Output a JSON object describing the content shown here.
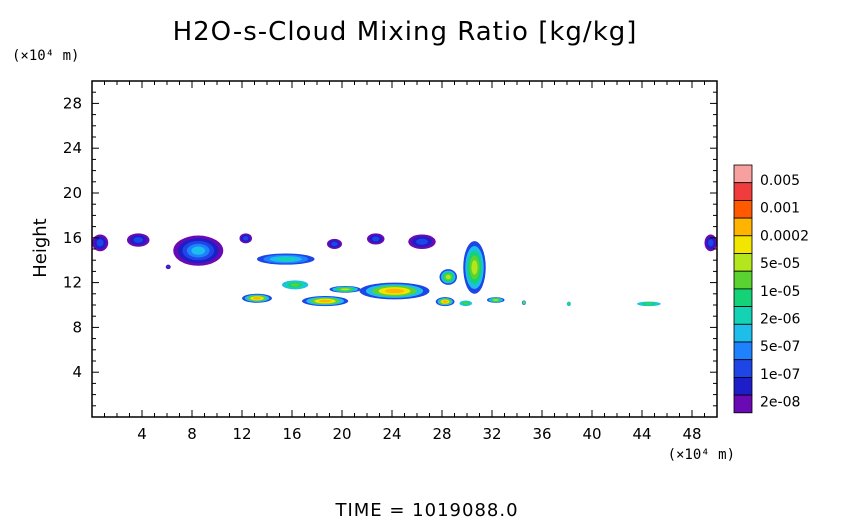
{
  "chart_data": {
    "type": "heatmap",
    "title": "H2O-s-Cloud Mixing Ratio [kg/kg]",
    "ylabel": "Height",
    "y_unit": "(×10⁴ m)",
    "x_unit": "(×10⁴ m)",
    "xlim": [
      0,
      50
    ],
    "ylim": [
      0,
      30
    ],
    "x_ticks": [
      4,
      8,
      12,
      16,
      20,
      24,
      28,
      32,
      36,
      40,
      44,
      48
    ],
    "y_ticks": [
      4,
      8,
      12,
      16,
      20,
      24,
      28
    ],
    "footer": "TIME = 1019088.0",
    "colorbar": {
      "labels": [
        "0.005",
        "0.001",
        "0.0002",
        "5e-05",
        "1e-05",
        "2e-06",
        "5e-07",
        "1e-07",
        "2e-08"
      ],
      "colors": [
        "#f7a0a0",
        "#f03c3c",
        "#ff5a00",
        "#ffb400",
        "#f2e600",
        "#b4e61e",
        "#5ad232",
        "#14d278",
        "#14d2b4",
        "#1ebeeb",
        "#1e82ff",
        "#1e46e6",
        "#1e1ec8",
        "#6a0ab4"
      ]
    },
    "cloud_regions": [
      {
        "x": [
          0.0,
          1.3
        ],
        "y": [
          14.8,
          16.3
        ],
        "level": "2e-08 to 1e-07"
      },
      {
        "x": [
          2.8,
          4.6
        ],
        "y": [
          15.2,
          16.4
        ],
        "level": "2e-08 to 1e-07"
      },
      {
        "x": [
          6.5,
          10.5
        ],
        "y": [
          13.5,
          16.2
        ],
        "level": "2e-08 to 5e-07"
      },
      {
        "x": [
          11.8,
          12.8
        ],
        "y": [
          15.5,
          16.4
        ],
        "level": "2e-08 to 1e-07"
      },
      {
        "x": [
          13.2,
          17.8
        ],
        "y": [
          13.6,
          14.6
        ],
        "level": "5e-07 to 2e-06"
      },
      {
        "x": [
          18.8,
          20.0
        ],
        "y": [
          15.0,
          15.9
        ],
        "level": "1e-07"
      },
      {
        "x": [
          22.0,
          23.4
        ],
        "y": [
          15.4,
          16.4
        ],
        "level": "2e-08"
      },
      {
        "x": [
          25.3,
          27.5
        ],
        "y": [
          15.0,
          16.3
        ],
        "level": "2e-08 to 1e-07"
      },
      {
        "x": [
          29.7,
          31.5
        ],
        "y": [
          11.0,
          15.7
        ],
        "level": "5e-07 to 5e-05"
      },
      {
        "x": [
          12.0,
          14.4
        ],
        "y": [
          10.2,
          11.0
        ],
        "level": "2e-06 to 0.0002"
      },
      {
        "x": [
          15.2,
          17.3
        ],
        "y": [
          11.4,
          12.2
        ],
        "level": "2e-06 to 1e-05"
      },
      {
        "x": [
          16.8,
          20.5
        ],
        "y": [
          9.9,
          10.8
        ],
        "level": "1e-05 to 0.0002"
      },
      {
        "x": [
          19.0,
          21.5
        ],
        "y": [
          11.1,
          11.7
        ],
        "level": "5e-05"
      },
      {
        "x": [
          21.4,
          27.0
        ],
        "y": [
          10.5,
          12.0
        ],
        "level": "1e-05 to 0.0002"
      },
      {
        "x": [
          27.8,
          29.2
        ],
        "y": [
          11.8,
          13.2
        ],
        "level": "5e-05"
      },
      {
        "x": [
          27.5,
          29.0
        ],
        "y": [
          9.9,
          10.7
        ],
        "level": "1e-05 to 0.0002"
      },
      {
        "x": [
          29.4,
          30.4
        ],
        "y": [
          9.9,
          10.4
        ],
        "level": "1e-05"
      },
      {
        "x": [
          31.6,
          33.0
        ],
        "y": [
          10.2,
          10.7
        ],
        "level": "5e-05"
      },
      {
        "x": [
          34.4,
          34.7
        ],
        "y": [
          10.0,
          10.4
        ],
        "level": "5e-05"
      },
      {
        "x": [
          38.0,
          38.3
        ],
        "y": [
          9.9,
          10.3
        ],
        "level": "1e-05"
      },
      {
        "x": [
          43.6,
          45.5
        ],
        "y": [
          9.9,
          10.3
        ],
        "level": "1e-05"
      },
      {
        "x": [
          5.9,
          6.3
        ],
        "y": [
          13.2,
          13.6
        ],
        "level": "1e-07"
      },
      {
        "x": [
          49.0,
          50.0
        ],
        "y": [
          14.8,
          16.3
        ],
        "level": "2e-08 to 1e-07"
      }
    ]
  }
}
